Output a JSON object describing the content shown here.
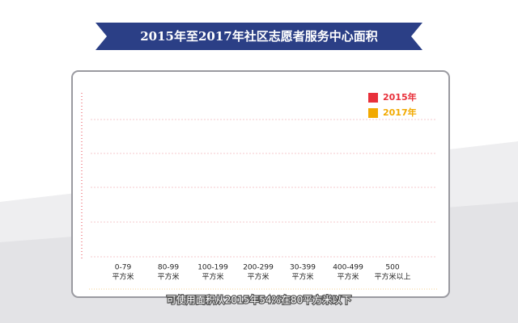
{
  "chart_data": {
    "type": "bar",
    "title": "2015年至2017年社区志愿者服务中心面积",
    "subtitle": "可使用面积从2015年54%在80平方米以下",
    "categories": [
      [
        "0-79",
        "平方米"
      ],
      [
        "80-99",
        "平方米"
      ],
      [
        "100-199",
        "平方米"
      ],
      [
        "200-299",
        "平方米"
      ],
      [
        "30-399",
        "平方米"
      ],
      [
        "400-499",
        "平方米"
      ],
      [
        "500",
        "平方米以上"
      ]
    ],
    "series": [
      {
        "name": "2015年",
        "color": "#e8303a",
        "values": [
          null,
          null,
          null,
          null,
          null,
          null,
          null
        ]
      },
      {
        "name": "2017年",
        "color": "#f2a900",
        "values": [
          null,
          null,
          null,
          null,
          null,
          null,
          null
        ]
      }
    ]
  }
}
